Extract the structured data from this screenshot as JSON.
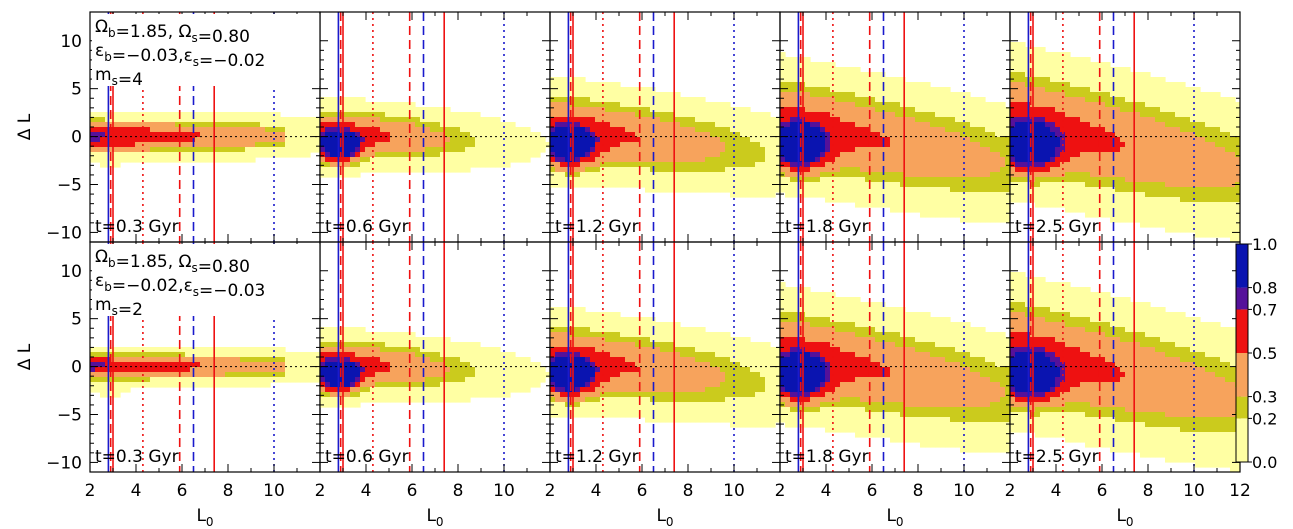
{
  "chart_data": {
    "type": "heatmap",
    "description_rows": 2,
    "description_cols": 5,
    "x_range": [
      2,
      12
    ],
    "y_range": [
      -11,
      13
    ],
    "x_ticks": [
      2,
      4,
      6,
      8,
      10
    ],
    "x_ticks_last": [
      2,
      4,
      6,
      8,
      10,
      12
    ],
    "y_ticks": [
      -10,
      -5,
      0,
      5,
      10
    ],
    "xlabel": "L",
    "xlabel_sub": "0",
    "ylabel": "Δ L",
    "levels": [
      0.0,
      0.2,
      0.3,
      0.5,
      0.7,
      0.8,
      1.0
    ],
    "level_colors": [
      "#ffffa3",
      "#cbcb1d",
      "#f7a35c",
      "#ee1111",
      "#55119a",
      "#0a14b0",
      "#000000"
    ],
    "colorbar_labels": [
      "0.0",
      "0.2",
      "0.3",
      "0.5",
      "0.7",
      "0.8",
      "1.0"
    ],
    "reference_lines": [
      {
        "x": 2.8,
        "color": "#1a1acc",
        "style": "solid"
      },
      {
        "x": 3.0,
        "color": "#ee1111",
        "style": "solid"
      },
      {
        "x": 2.9,
        "color": "#ee1111",
        "style": "dashed"
      },
      {
        "x": 4.3,
        "color": "#ee1111",
        "style": "dotted"
      },
      {
        "x": 5.9,
        "color": "#ee1111",
        "style": "dashed"
      },
      {
        "x": 6.5,
        "color": "#1a1acc",
        "style": "dashed"
      },
      {
        "x": 7.4,
        "color": "#ee1111",
        "style": "solid"
      },
      {
        "x": 10.0,
        "color": "#1a1acc",
        "style": "dotted"
      }
    ],
    "rows": [
      {
        "params": {
          "line1": "Ω_b=1.85,  Ω_s=0.80",
          "line2": "ε_b=−0.03,ε_s=−0.02",
          "line3": "m_s=4"
        },
        "panels": [
          {
            "time": "t=0.3 Gyr",
            "t": 0.3
          },
          {
            "time": "t=0.6 Gyr",
            "t": 0.6
          },
          {
            "time": "t=1.2 Gyr",
            "t": 1.2
          },
          {
            "time": "t=1.8 Gyr",
            "t": 1.8
          },
          {
            "time": "t=2.5 Gyr",
            "t": 2.5
          }
        ]
      },
      {
        "params": {
          "line1": "Ω_b=1.85,  Ω_s=0.80",
          "line2": "ε_b=−0.02,ε_s=−0.03",
          "line3": "m_s=2"
        },
        "panels": [
          {
            "time": "t=0.3 Gyr",
            "t": 0.3
          },
          {
            "time": "t=0.6 Gyr",
            "t": 0.6
          },
          {
            "time": "t=1.2 Gyr",
            "t": 1.2
          },
          {
            "time": "t=1.8 Gyr",
            "t": 1.8
          },
          {
            "time": "t=2.5 Gyr",
            "t": 2.5
          }
        ]
      }
    ]
  }
}
